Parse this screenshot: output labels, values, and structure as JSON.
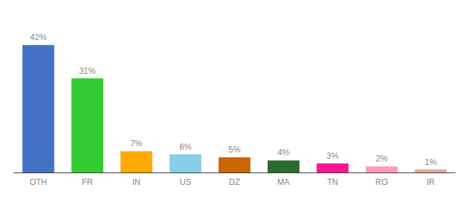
{
  "chart_data": {
    "type": "bar",
    "categories": [
      "OTH",
      "FR",
      "IN",
      "US",
      "DZ",
      "MA",
      "TN",
      "RO",
      "IR"
    ],
    "values": [
      42,
      31,
      7,
      6,
      5,
      4,
      3,
      2,
      1
    ],
    "value_labels": [
      "42%",
      "31%",
      "7%",
      "6%",
      "5%",
      "4%",
      "3%",
      "2%",
      "1%"
    ],
    "colors": [
      "#4472c4",
      "#33cc33",
      "#ffaa00",
      "#87ceeb",
      "#cc6600",
      "#2d6a2d",
      "#ff1493",
      "#ff99bb",
      "#e8a898"
    ],
    "ylim": [
      0,
      50
    ],
    "grid": false,
    "data_labels": true,
    "tick_labels": "x"
  }
}
